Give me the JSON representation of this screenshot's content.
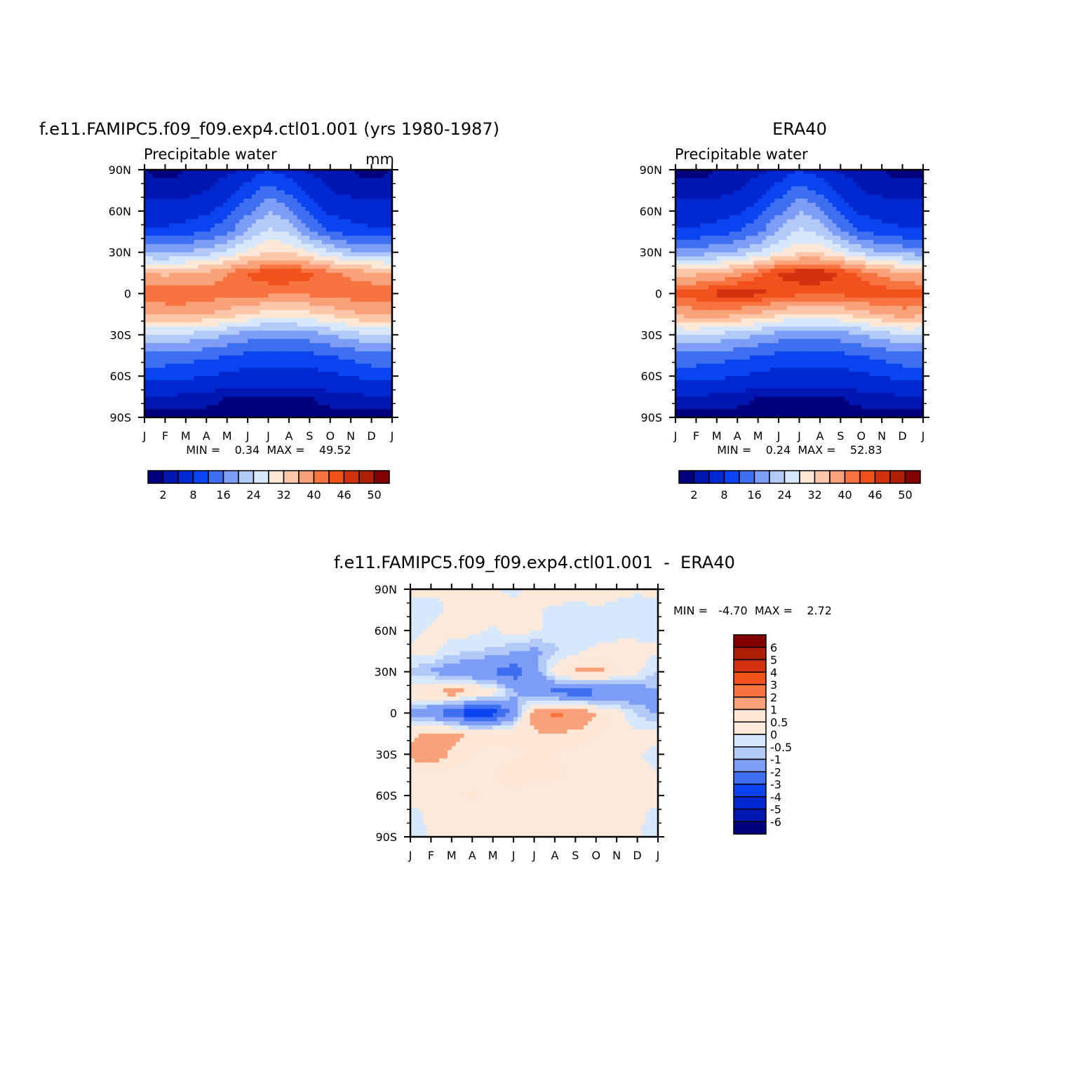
{
  "chart_data": [
    {
      "type": "heatmap",
      "title": "f.e11.FAMIPC5.f09_f09.exp4.ctl01.001 (yrs 1980-1987)",
      "subtitle": "Precipitable water",
      "units": "mm",
      "x_ticks": [
        "J",
        "F",
        "M",
        "A",
        "M",
        "J",
        "J",
        "A",
        "S",
        "O",
        "N",
        "D",
        "J"
      ],
      "y_ticks": [
        "90N",
        "60N",
        "30N",
        "0",
        "30S",
        "60S",
        "90S"
      ],
      "y_values": [
        90,
        60,
        30,
        0,
        -30,
        -60,
        -90
      ],
      "stats": "MIN =    0.34  MAX =    49.52",
      "colorbar": {
        "levels": [
          "2",
          "8",
          "16",
          "24",
          "32",
          "40",
          "46",
          "50"
        ],
        "colors": [
          "#00007f",
          "#0016b0",
          "#0028d0",
          "#0a44f0",
          "#3d6ff0",
          "#7d9df7",
          "#b3caf8",
          "#d8e8fb",
          "#fde8d8",
          "#fcc6a9",
          "#f9a178",
          "#f7733f",
          "#f2511c",
          "#d23210",
          "#ac1f05",
          "#830000"
        ]
      },
      "data_field": {
        "rows_lat": [
          90,
          75,
          60,
          45,
          30,
          15,
          0,
          -15,
          -30,
          -45,
          -60,
          -75,
          -90
        ],
        "cols_month": [
          "J",
          "F",
          "M",
          "A",
          "M",
          "J",
          "J",
          "A",
          "S",
          "O",
          "N",
          "D",
          "J"
        ],
        "values": [
          [
            2,
            1,
            2,
            2,
            3,
            5,
            8,
            6,
            3,
            2,
            2,
            1,
            2
          ],
          [
            3,
            3,
            3,
            4,
            6,
            10,
            14,
            11,
            7,
            4,
            3,
            3,
            3
          ],
          [
            5,
            5,
            6,
            7,
            10,
            15,
            20,
            17,
            11,
            7,
            6,
            5,
            5
          ],
          [
            9,
            9,
            10,
            12,
            15,
            20,
            25,
            23,
            17,
            12,
            10,
            9,
            9
          ],
          [
            19,
            19,
            20,
            22,
            25,
            29,
            32,
            32,
            28,
            24,
            21,
            20,
            19
          ],
          [
            36,
            35,
            36,
            37,
            40,
            43,
            45,
            45,
            44,
            41,
            39,
            37,
            36
          ],
          [
            43,
            43,
            43,
            42,
            42,
            42,
            41,
            41,
            41,
            42,
            42,
            43,
            43
          ],
          [
            36,
            37,
            37,
            36,
            34,
            32,
            30,
            30,
            31,
            33,
            35,
            37,
            36
          ],
          [
            24,
            24,
            23,
            22,
            20,
            18,
            17,
            17,
            18,
            20,
            22,
            24,
            24
          ],
          [
            15,
            15,
            14,
            13,
            12,
            11,
            10,
            10,
            11,
            12,
            13,
            15,
            15
          ],
          [
            9,
            9,
            9,
            8,
            7,
            6,
            6,
            6,
            6,
            7,
            8,
            9,
            9
          ],
          [
            4,
            4,
            3,
            3,
            2,
            2,
            2,
            2,
            2,
            3,
            3,
            4,
            4
          ],
          [
            1,
            1,
            1,
            1,
            1,
            1,
            1,
            1,
            1,
            1,
            1,
            1,
            1
          ]
        ]
      }
    },
    {
      "type": "heatmap",
      "title": "ERA40",
      "subtitle": "Precipitable water",
      "units": "",
      "x_ticks": [
        "J",
        "F",
        "M",
        "A",
        "M",
        "J",
        "J",
        "A",
        "S",
        "O",
        "N",
        "D",
        "J"
      ],
      "y_ticks": [
        "90N",
        "60N",
        "30N",
        "0",
        "30S",
        "60S",
        "90S"
      ],
      "y_values": [
        90,
        60,
        30,
        0,
        -30,
        -60,
        -90
      ],
      "stats": "MIN =    0.24  MAX =    52.83",
      "colorbar": {
        "levels": [
          "2",
          "8",
          "16",
          "24",
          "32",
          "40",
          "46",
          "50"
        ],
        "colors": [
          "#00007f",
          "#0016b0",
          "#0028d0",
          "#0a44f0",
          "#3d6ff0",
          "#7d9df7",
          "#b3caf8",
          "#d8e8fb",
          "#fde8d8",
          "#fcc6a9",
          "#f9a178",
          "#f7733f",
          "#f2511c",
          "#d23210",
          "#ac1f05",
          "#830000"
        ]
      },
      "data_field": {
        "rows_lat": [
          90,
          75,
          60,
          45,
          30,
          15,
          0,
          -15,
          -30,
          -45,
          -60,
          -75,
          -90
        ],
        "cols_month": [
          "J",
          "F",
          "M",
          "A",
          "M",
          "J",
          "J",
          "A",
          "S",
          "O",
          "N",
          "D",
          "J"
        ],
        "values": [
          [
            1,
            1,
            2,
            2,
            3,
            5,
            8,
            6,
            3,
            2,
            2,
            1,
            1
          ],
          [
            3,
            3,
            3,
            4,
            6,
            10,
            14,
            11,
            7,
            4,
            3,
            3,
            3
          ],
          [
            5,
            5,
            6,
            7,
            10,
            15,
            20,
            17,
            11,
            7,
            6,
            5,
            5
          ],
          [
            9,
            9,
            10,
            12,
            15,
            20,
            25,
            23,
            17,
            12,
            10,
            9,
            9
          ],
          [
            18,
            18,
            19,
            21,
            24,
            28,
            31,
            31,
            27,
            23,
            20,
            19,
            18
          ],
          [
            35,
            35,
            36,
            38,
            42,
            46,
            48,
            48,
            46,
            42,
            39,
            36,
            35
          ],
          [
            44,
            45,
            47,
            48,
            47,
            45,
            44,
            44,
            44,
            45,
            45,
            45,
            44
          ],
          [
            37,
            38,
            38,
            37,
            35,
            33,
            31,
            31,
            32,
            34,
            36,
            38,
            37
          ],
          [
            24,
            24,
            23,
            22,
            20,
            18,
            17,
            17,
            18,
            20,
            22,
            24,
            24
          ],
          [
            15,
            15,
            14,
            13,
            12,
            11,
            10,
            10,
            11,
            12,
            13,
            15,
            15
          ],
          [
            9,
            9,
            9,
            8,
            7,
            6,
            6,
            6,
            6,
            7,
            8,
            9,
            9
          ],
          [
            4,
            4,
            3,
            3,
            2,
            2,
            2,
            2,
            2,
            3,
            3,
            4,
            4
          ],
          [
            1,
            1,
            1,
            1,
            1,
            1,
            1,
            1,
            1,
            1,
            1,
            1,
            1
          ]
        ]
      }
    },
    {
      "type": "heatmap",
      "title": "f.e11.FAMIPC5.f09_f09.exp4.ctl01.001  -  ERA40",
      "x_ticks": [
        "J",
        "F",
        "M",
        "A",
        "M",
        "J",
        "J",
        "A",
        "S",
        "O",
        "N",
        "D",
        "J"
      ],
      "y_ticks": [
        "90N",
        "60N",
        "30N",
        "0",
        "30S",
        "60S",
        "90S"
      ],
      "y_values": [
        90,
        60,
        30,
        0,
        -30,
        -60,
        -90
      ],
      "stats": "MIN =   -4.70  MAX =    2.72",
      "colorbar": {
        "levels": [
          "6",
          "5",
          "4",
          "3",
          "2",
          "1",
          "0.5",
          "0",
          "-0.5",
          "-1",
          "-2",
          "-3",
          "-4",
          "-5",
          "-6"
        ],
        "colors": [
          "#830000",
          "#ac1f05",
          "#d23210",
          "#f2511c",
          "#f7733f",
          "#f9a178",
          "#fde8d8",
          "#fce9d9",
          "#d8e8fb",
          "#b3caf8",
          "#7d9df7",
          "#3d6ff0",
          "#0a44f0",
          "#0028d0",
          "#0016b0",
          "#00007f"
        ]
      },
      "data_field": {
        "rows_lat": [
          90,
          75,
          60,
          45,
          30,
          15,
          0,
          -15,
          -30,
          -45,
          -60,
          -75,
          -90
        ],
        "cols_month": [
          "J",
          "F",
          "M",
          "A",
          "M",
          "J",
          "J",
          "A",
          "S",
          "O",
          "N",
          "D",
          "J"
        ],
        "values": [
          [
            0.2,
            0.1,
            0.1,
            0.2,
            0.1,
            -0.2,
            0.3,
            0.6,
            0.7,
            0.9,
            0.2,
            0.1,
            0.2
          ],
          [
            -0.3,
            -0.2,
            0.1,
            0.3,
            0.4,
            0.2,
            0.1,
            -0.2,
            -0.4,
            -0.3,
            -0.2,
            -0.3,
            -0.3
          ],
          [
            -0.2,
            0.1,
            0.2,
            0.2,
            -0.1,
            0.3,
            0.1,
            -0.2,
            -0.3,
            -0.4,
            -0.3,
            -0.2,
            -0.2
          ],
          [
            0.1,
            0.2,
            -0.3,
            -0.5,
            -0.6,
            -0.9,
            -1.2,
            -0.6,
            -0.2,
            0.2,
            0.3,
            0.2,
            0.1
          ],
          [
            -0.6,
            -1.1,
            -1.5,
            -1.9,
            -2.1,
            -2.6,
            -1.4,
            0.3,
            1.2,
            1.3,
            0.6,
            0.2,
            -0.6
          ],
          [
            0.6,
            1.0,
            1.5,
            1.1,
            0.4,
            -0.8,
            -1.9,
            -2.3,
            -2.6,
            -2.3,
            -1.9,
            -1.6,
            -1.0
          ],
          [
            -1.4,
            -1.9,
            -2.6,
            -4.0,
            -3.6,
            -1.6,
            1.6,
            2.2,
            2.0,
            1.0,
            0.3,
            -0.6,
            -1.2
          ],
          [
            0.8,
            1.3,
            1.2,
            0.9,
            0.8,
            0.7,
            0.9,
            1.0,
            0.8,
            0.6,
            0.3,
            0.2,
            0.5
          ],
          [
            1.2,
            1.5,
            0.9,
            0.5,
            0.3,
            0.4,
            0.6,
            0.5,
            0.4,
            0.3,
            0.2,
            0.1,
            -0.3
          ],
          [
            0.3,
            0.4,
            0.3,
            0.3,
            0.5,
            0.9,
            0.7,
            0.6,
            0.4,
            0.3,
            0.2,
            0.2,
            0.1
          ],
          [
            0.2,
            0.3,
            0.4,
            0.6,
            0.4,
            0.3,
            0.2,
            0.2,
            0.2,
            0.2,
            0.2,
            0.2,
            0.2
          ],
          [
            -0.2,
            0.1,
            0.2,
            0.2,
            0.1,
            0.1,
            0.1,
            0.1,
            0.1,
            0.1,
            0.1,
            0.1,
            -0.2
          ],
          [
            -0.3,
            0.1,
            0.1,
            0.1,
            0.1,
            0.1,
            0.1,
            0.1,
            0.1,
            0.1,
            0.1,
            0.1,
            -0.3
          ]
        ]
      }
    }
  ]
}
